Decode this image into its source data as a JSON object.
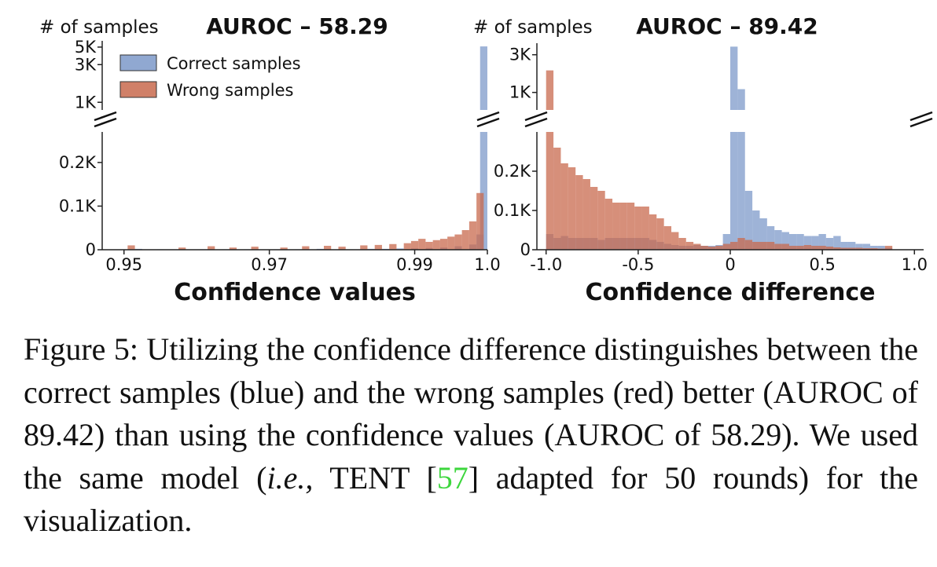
{
  "colors": {
    "correct": "#7d99c9",
    "wrong": "#c86a4e",
    "axis": "#222222",
    "citation": "#3dd63d"
  },
  "chart_data": [
    {
      "type": "bar",
      "title": "AUROC – 58.29",
      "ylabel": "# of samples",
      "xlabel": "Confidence values",
      "xlim": [
        0.947,
        1.0
      ],
      "x_ticks": [
        "0.95",
        "0.97",
        "0.99",
        "1.0"
      ],
      "y_ticks_upper": [
        "5K",
        "3K",
        "1K"
      ],
      "y_ticks_lower": [
        "0.2K",
        "0.1K",
        "0"
      ],
      "broken_y_axis": true,
      "legend": {
        "position": "top-left",
        "entries": [
          "Correct samples",
          "Wrong samples"
        ]
      },
      "bin_width": 0.001,
      "series": [
        {
          "name": "Correct samples",
          "color": "correct",
          "bins": [
            [
              0.952,
              0.002
            ],
            [
              0.955,
              0.001
            ],
            [
              0.961,
              0.001
            ],
            [
              0.964,
              0.001
            ],
            [
              0.967,
              0.001
            ],
            [
              0.971,
              0.001
            ],
            [
              0.974,
              0.001
            ],
            [
              0.977,
              0.002
            ],
            [
              0.981,
              0.001
            ],
            [
              0.984,
              0.002
            ],
            [
              0.986,
              0.002
            ],
            [
              0.988,
              0.003
            ],
            [
              0.99,
              0.003
            ],
            [
              0.992,
              0.004
            ],
            [
              0.994,
              0.005
            ],
            [
              0.996,
              0.008
            ],
            [
              0.998,
              0.012
            ],
            [
              0.999,
              0.035
            ],
            [
              0.9995,
              5100
            ]
          ]
        },
        {
          "name": "Wrong samples",
          "color": "wrong",
          "bins": [
            [
              0.951,
              0.01
            ],
            [
              0.958,
              0.005
            ],
            [
              0.962,
              0.008
            ],
            [
              0.965,
              0.005
            ],
            [
              0.968,
              0.007
            ],
            [
              0.972,
              0.005
            ],
            [
              0.975,
              0.008
            ],
            [
              0.978,
              0.009
            ],
            [
              0.98,
              0.007
            ],
            [
              0.983,
              0.01
            ],
            [
              0.985,
              0.011
            ],
            [
              0.987,
              0.013
            ],
            [
              0.989,
              0.015
            ],
            [
              0.99,
              0.02
            ],
            [
              0.991,
              0.025
            ],
            [
              0.992,
              0.018
            ],
            [
              0.993,
              0.022
            ],
            [
              0.994,
              0.025
            ],
            [
              0.995,
              0.03
            ],
            [
              0.996,
              0.035
            ],
            [
              0.997,
              0.045
            ],
            [
              0.998,
              0.065
            ],
            [
              0.999,
              0.13
            ]
          ]
        }
      ]
    },
    {
      "type": "bar",
      "title": "AUROC – 89.42",
      "ylabel": "# of samples",
      "xlabel": "Confidence difference",
      "xlim": [
        -1.05,
        1.05
      ],
      "x_ticks": [
        "-1.0",
        "-0.5",
        "0",
        "0.5",
        "1.0"
      ],
      "y_ticks_upper": [
        "3K",
        "1K"
      ],
      "y_ticks_lower": [
        "0.2K",
        "0.1K",
        "0"
      ],
      "broken_y_axis": true,
      "bin_width": 0.04,
      "series": [
        {
          "name": "Correct samples",
          "color": "correct",
          "bins": [
            [
              -0.98,
              0.04
            ],
            [
              -0.94,
              0.03
            ],
            [
              -0.9,
              0.035
            ],
            [
              -0.86,
              0.03
            ],
            [
              -0.82,
              0.03
            ],
            [
              -0.78,
              0.03
            ],
            [
              -0.74,
              0.03
            ],
            [
              -0.7,
              0.025
            ],
            [
              -0.66,
              0.03
            ],
            [
              -0.62,
              0.03
            ],
            [
              -0.58,
              0.03
            ],
            [
              -0.54,
              0.03
            ],
            [
              -0.5,
              0.03
            ],
            [
              -0.46,
              0.03
            ],
            [
              -0.42,
              0.025
            ],
            [
              -0.38,
              0.02
            ],
            [
              -0.34,
              0.015
            ],
            [
              -0.3,
              0.012
            ],
            [
              -0.26,
              0.01
            ],
            [
              -0.22,
              0.01
            ],
            [
              -0.18,
              0.012
            ],
            [
              -0.14,
              0.01
            ],
            [
              -0.1,
              0.01
            ],
            [
              -0.06,
              0.012
            ],
            [
              -0.02,
              0.04
            ],
            [
              0.02,
              3800
            ],
            [
              0.06,
              1100
            ],
            [
              0.1,
              0.15
            ],
            [
              0.14,
              0.1
            ],
            [
              0.18,
              0.08
            ],
            [
              0.22,
              0.06
            ],
            [
              0.26,
              0.05
            ],
            [
              0.3,
              0.045
            ],
            [
              0.34,
              0.04
            ],
            [
              0.38,
              0.04
            ],
            [
              0.42,
              0.035
            ],
            [
              0.46,
              0.035
            ],
            [
              0.5,
              0.04
            ],
            [
              0.54,
              0.03
            ],
            [
              0.58,
              0.035
            ],
            [
              0.62,
              0.02
            ],
            [
              0.66,
              0.02
            ],
            [
              0.7,
              0.015
            ],
            [
              0.74,
              0.015
            ],
            [
              0.78,
              0.01
            ],
            [
              0.82,
              0.01
            ],
            [
              0.86,
              0.005
            ]
          ]
        },
        {
          "name": "Wrong samples",
          "color": "wrong",
          "bins": [
            [
              -0.98,
              1900
            ],
            [
              -0.94,
              0.26
            ],
            [
              -0.9,
              0.22
            ],
            [
              -0.86,
              0.21
            ],
            [
              -0.82,
              0.19
            ],
            [
              -0.78,
              0.18
            ],
            [
              -0.74,
              0.16
            ],
            [
              -0.7,
              0.15
            ],
            [
              -0.66,
              0.13
            ],
            [
              -0.62,
              0.12
            ],
            [
              -0.58,
              0.12
            ],
            [
              -0.54,
              0.12
            ],
            [
              -0.5,
              0.11
            ],
            [
              -0.46,
              0.11
            ],
            [
              -0.42,
              0.09
            ],
            [
              -0.38,
              0.08
            ],
            [
              -0.34,
              0.06
            ],
            [
              -0.3,
              0.045
            ],
            [
              -0.26,
              0.03
            ],
            [
              -0.22,
              0.02
            ],
            [
              -0.18,
              0.015
            ],
            [
              -0.14,
              0.01
            ],
            [
              -0.1,
              0.008
            ],
            [
              -0.06,
              0.01
            ],
            [
              -0.02,
              0.015
            ],
            [
              0.02,
              0.02
            ],
            [
              0.06,
              0.03
            ],
            [
              0.1,
              0.025
            ],
            [
              0.14,
              0.02
            ],
            [
              0.18,
              0.02
            ],
            [
              0.22,
              0.02
            ],
            [
              0.26,
              0.015
            ],
            [
              0.3,
              0.015
            ],
            [
              0.34,
              0.01
            ],
            [
              0.38,
              0.01
            ],
            [
              0.42,
              0.012
            ],
            [
              0.46,
              0.01
            ],
            [
              0.5,
              0.01
            ],
            [
              0.54,
              0.008
            ],
            [
              0.58,
              0.006
            ],
            [
              0.62,
              0.005
            ],
            [
              0.66,
              0.005
            ],
            [
              0.7,
              0.005
            ],
            [
              0.74,
              0.004
            ],
            [
              0.78,
              0.004
            ],
            [
              0.82,
              0.003
            ],
            [
              0.86,
              0.01
            ]
          ]
        }
      ]
    }
  ],
  "caption": {
    "text_a": "Figure 5: Utilizing the confidence difference distinguishes between the correct samples (blue) and the wrong samples (red) better (AUROC of 89.42) than using the confidence values (AUROC of 58.29).  We used the same model (",
    "text_ie": "i.e.,",
    "text_b": " TENT [",
    "citation": "57",
    "text_c": "] adapted for 50 rounds) for the visualization."
  }
}
